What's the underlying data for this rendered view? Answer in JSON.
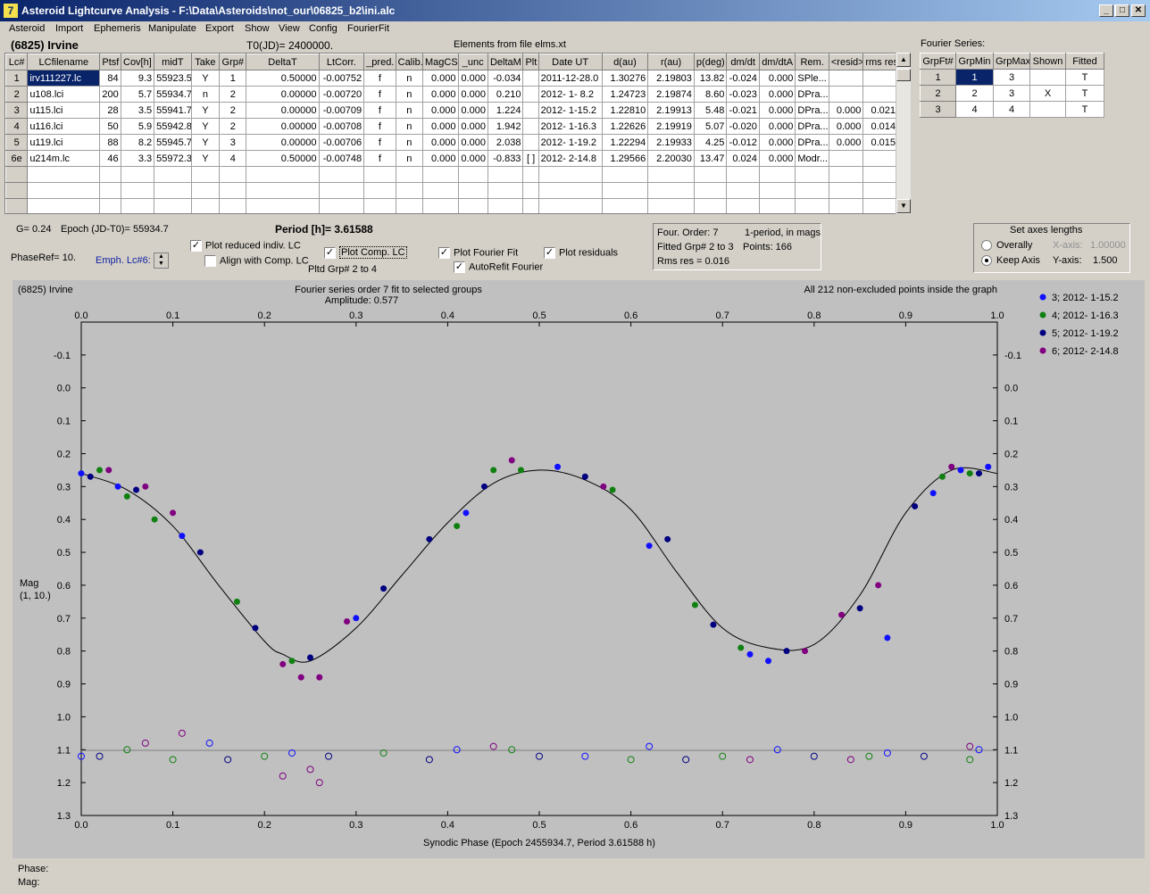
{
  "window": {
    "title": "Asteroid Lightcurve Analysis - F:\\Data\\Asteroids\\not_our\\06825_b2\\ini.alc"
  },
  "menu": [
    "Asteroid",
    "Import",
    "Ephemeris",
    "Manipulate",
    "Export",
    "Show",
    "View",
    "Config",
    "FourierFit"
  ],
  "header": {
    "asteroid_name": "(6825) Irvine",
    "t0": "T0(JD)= 2400000.",
    "elements": "Elements from file elms.xt"
  },
  "lc_table": {
    "columns": [
      "Lc#",
      "LCfilename",
      "Ptsf",
      "Cov[h]",
      "midT",
      "Take",
      "Grp#",
      "DeltaT",
      "LtCorr.",
      "_pred.",
      "Calib.",
      "MagCS",
      "_unc",
      "DeltaM",
      "Plt",
      "Date UT",
      "d(au)",
      "r(au)",
      "p(deg)",
      "dm/dt",
      "dm/dtA",
      "Rem.",
      "<resid>",
      "rms res"
    ],
    "rows": [
      [
        "1",
        "irv111227.lc",
        "84",
        "9.3",
        "55923.5",
        "Y",
        "1",
        "0.50000",
        "-0.00752",
        "f",
        "n",
        "0.000",
        "0.000",
        "-0.034",
        "",
        "2011-12-28.0",
        "1.30276",
        "2.19803",
        "13.82",
        "-0.024",
        "0.000",
        "SPle...",
        "",
        ""
      ],
      [
        "2",
        "u108.lci",
        "200",
        "5.7",
        "55934.7",
        "n",
        "2",
        "0.00000",
        "-0.00720",
        "f",
        "n",
        "0.000",
        "0.000",
        "0.210",
        "",
        "2012- 1- 8.2",
        "1.24723",
        "2.19874",
        "8.60",
        "-0.023",
        "0.000",
        "DPra...",
        "",
        ""
      ],
      [
        "3",
        "u115.lci",
        "28",
        "3.5",
        "55941.7",
        "Y",
        "2",
        "0.00000",
        "-0.00709",
        "f",
        "n",
        "0.000",
        "0.000",
        "1.224",
        "",
        "2012- 1-15.2",
        "1.22810",
        "2.19913",
        "5.48",
        "-0.021",
        "0.000",
        "DPra...",
        "0.000",
        "0.021"
      ],
      [
        "4",
        "u116.lci",
        "50",
        "5.9",
        "55942.8",
        "Y",
        "2",
        "0.00000",
        "-0.00708",
        "f",
        "n",
        "0.000",
        "0.000",
        "1.942",
        "",
        "2012- 1-16.3",
        "1.22626",
        "2.19919",
        "5.07",
        "-0.020",
        "0.000",
        "DPra...",
        "0.000",
        "0.014"
      ],
      [
        "5",
        "u119.lci",
        "88",
        "8.2",
        "55945.7",
        "Y",
        "3",
        "0.00000",
        "-0.00706",
        "f",
        "n",
        "0.000",
        "0.000",
        "2.038",
        "",
        "2012- 1-19.2",
        "1.22294",
        "2.19933",
        "4.25",
        "-0.012",
        "0.000",
        "DPra...",
        "0.000",
        "0.015"
      ],
      [
        "6e",
        "u214m.lc",
        "46",
        "3.3",
        "55972.3",
        "Y",
        "4",
        "0.50000",
        "-0.00748",
        "f",
        "n",
        "0.000",
        "0.000",
        "-0.833",
        "[ ]",
        "2012- 2-14.8",
        "1.29566",
        "2.20030",
        "13.47",
        "0.024",
        "0.000",
        "Modr...",
        "",
        ""
      ]
    ]
  },
  "fourier_series": {
    "title": "Fourier Series:",
    "columns": [
      "GrpFt#",
      "GrpMin",
      "GrpMax",
      "Shown",
      "Fitted"
    ],
    "rows": [
      [
        "1",
        "1",
        "3",
        "",
        "T"
      ],
      [
        "2",
        "2",
        "3",
        "X",
        "T"
      ],
      [
        "3",
        "4",
        "4",
        "",
        "T"
      ]
    ]
  },
  "controls": {
    "g": "G= 0.24",
    "epoch": "Epoch (JD-T0)= 55934.7",
    "period": "Period [h]= 3.61588",
    "phase_ref": "PhaseRef= 10.",
    "emph": "Emph. Lc#6:",
    "plot_reduced": "Plot reduced indiv. LC",
    "align": "Align with Comp. LC",
    "plot_comp": "Plot Comp. LC",
    "plotted_grp": "Pltd Grp#  2   to    4",
    "plot_fourier": "Plot Fourier Fit",
    "autorefit": "AutoRefit Fourier",
    "plot_residuals": "Plot residuals",
    "four_order": "Four. Order:  7",
    "one_period": "1-period, in mags",
    "fitted_grp": "Fitted Grp# 2 to 3",
    "points": "Points: 166",
    "rms": "Rms res      = 0.016",
    "axes_title": "Set axes lengths",
    "overall": "Overally",
    "keep_axis": "Keep Axis",
    "x_axis": "X-axis:",
    "x_axis_val": "1.00000",
    "y_axis": "Y-axis:",
    "y_axis_val": "1.500",
    "phase_label": "Phase:",
    "mag_label": "Mag:"
  },
  "plot": {
    "corner": "(6825) Irvine",
    "title": "Fourier series order 7 fit to selected groups",
    "amplitude": "Amplitude: 0.577",
    "note": "All 212 non-excluded points inside the graph",
    "xlabel": "Synodic Phase (Epoch 2455934.7, Period 3.61588 h)",
    "ylabel": "Mag",
    "ylabel2": "(1, 10.)",
    "xticks": [
      "0.0",
      "0.1",
      "0.2",
      "0.3",
      "0.4",
      "0.5",
      "0.6",
      "0.7",
      "0.8",
      "0.9",
      "1.0"
    ],
    "yticks": [
      "-0.1",
      "0.0",
      "0.1",
      "0.2",
      "0.3",
      "0.4",
      "0.5",
      "0.6",
      "0.7",
      "0.8",
      "0.9",
      "1.0",
      "1.1",
      "1.2",
      "1.3"
    ],
    "legend": [
      {
        "label": "3; 2012- 1-15.2",
        "color": "#1010ff"
      },
      {
        "label": "4; 2012- 1-16.3",
        "color": "#108010"
      },
      {
        "label": "5; 2012- 1-19.2",
        "color": "#000080"
      },
      {
        "label": "6; 2012- 2-14.8",
        "color": "#800080"
      }
    ]
  },
  "chart_data": {
    "type": "scatter",
    "title": "Fourier series order 7 fit to selected groups",
    "xlabel": "Synodic Phase (Epoch 2455934.7, Period 3.61588 h)",
    "ylabel": "Mag",
    "xlim": [
      0.0,
      1.0
    ],
    "ylim": [
      -0.2,
      1.3
    ],
    "y_inverted": true,
    "grid": false,
    "legend_position": "right",
    "fit_curve": {
      "x": [
        0.0,
        0.05,
        0.1,
        0.15,
        0.2,
        0.22,
        0.25,
        0.3,
        0.35,
        0.4,
        0.45,
        0.5,
        0.55,
        0.6,
        0.65,
        0.7,
        0.75,
        0.8,
        0.85,
        0.9,
        0.95,
        1.0
      ],
      "y": [
        0.26,
        0.31,
        0.42,
        0.6,
        0.77,
        0.81,
        0.83,
        0.73,
        0.57,
        0.41,
        0.29,
        0.25,
        0.28,
        0.37,
        0.56,
        0.73,
        0.79,
        0.78,
        0.63,
        0.38,
        0.25,
        0.26
      ]
    },
    "series": [
      {
        "name": "3; 2012- 1-15.2",
        "values": [
          [
            0.0,
            0.26
          ],
          [
            0.04,
            0.3
          ],
          [
            0.11,
            0.45
          ],
          [
            0.3,
            0.7
          ],
          [
            0.42,
            0.38
          ],
          [
            0.52,
            0.24
          ],
          [
            0.62,
            0.48
          ],
          [
            0.73,
            0.81
          ],
          [
            0.75,
            0.83
          ],
          [
            0.88,
            0.76
          ],
          [
            0.93,
            0.32
          ],
          [
            0.96,
            0.25
          ],
          [
            0.99,
            0.24
          ]
        ]
      },
      {
        "name": "4; 2012- 1-16.3",
        "values": [
          [
            0.02,
            0.25
          ],
          [
            0.05,
            0.33
          ],
          [
            0.08,
            0.4
          ],
          [
            0.17,
            0.65
          ],
          [
            0.23,
            0.83
          ],
          [
            0.41,
            0.42
          ],
          [
            0.45,
            0.25
          ],
          [
            0.48,
            0.25
          ],
          [
            0.58,
            0.31
          ],
          [
            0.67,
            0.66
          ],
          [
            0.72,
            0.79
          ],
          [
            0.94,
            0.27
          ],
          [
            0.97,
            0.26
          ]
        ]
      },
      {
        "name": "5; 2012- 1-19.2",
        "values": [
          [
            0.01,
            0.27
          ],
          [
            0.06,
            0.31
          ],
          [
            0.13,
            0.5
          ],
          [
            0.19,
            0.73
          ],
          [
            0.25,
            0.82
          ],
          [
            0.33,
            0.61
          ],
          [
            0.38,
            0.46
          ],
          [
            0.44,
            0.3
          ],
          [
            0.55,
            0.27
          ],
          [
            0.64,
            0.46
          ],
          [
            0.69,
            0.72
          ],
          [
            0.77,
            0.8
          ],
          [
            0.85,
            0.67
          ],
          [
            0.91,
            0.36
          ],
          [
            0.98,
            0.26
          ]
        ]
      },
      {
        "name": "6; 2012- 2-14.8",
        "values": [
          [
            0.03,
            0.25
          ],
          [
            0.07,
            0.3
          ],
          [
            0.1,
            0.38
          ],
          [
            0.22,
            0.84
          ],
          [
            0.24,
            0.88
          ],
          [
            0.26,
            0.88
          ],
          [
            0.29,
            0.71
          ],
          [
            0.47,
            0.22
          ],
          [
            0.57,
            0.3
          ],
          [
            0.79,
            0.8
          ],
          [
            0.83,
            0.69
          ],
          [
            0.87,
            0.6
          ],
          [
            0.95,
            0.24
          ]
        ]
      }
    ],
    "residual_series": [
      {
        "name": "3; 2012- 1-15.2",
        "values": [
          [
            0.0,
            1.12
          ],
          [
            0.14,
            1.08
          ],
          [
            0.23,
            1.11
          ],
          [
            0.41,
            1.1
          ],
          [
            0.55,
            1.12
          ],
          [
            0.62,
            1.09
          ],
          [
            0.76,
            1.1
          ],
          [
            0.88,
            1.11
          ],
          [
            0.98,
            1.1
          ]
        ]
      },
      {
        "name": "4; 2012- 1-16.3",
        "values": [
          [
            0.05,
            1.1
          ],
          [
            0.1,
            1.13
          ],
          [
            0.2,
            1.12
          ],
          [
            0.33,
            1.11
          ],
          [
            0.47,
            1.1
          ],
          [
            0.6,
            1.13
          ],
          [
            0.7,
            1.12
          ],
          [
            0.86,
            1.12
          ],
          [
            0.97,
            1.13
          ]
        ]
      },
      {
        "name": "5; 2012- 1-19.2",
        "values": [
          [
            0.02,
            1.12
          ],
          [
            0.16,
            1.13
          ],
          [
            0.27,
            1.12
          ],
          [
            0.38,
            1.13
          ],
          [
            0.5,
            1.12
          ],
          [
            0.66,
            1.13
          ],
          [
            0.8,
            1.12
          ],
          [
            0.92,
            1.12
          ]
        ]
      },
      {
        "name": "6; 2012- 2-14.8",
        "values": [
          [
            0.07,
            1.08
          ],
          [
            0.11,
            1.05
          ],
          [
            0.22,
            1.18
          ],
          [
            0.25,
            1.16
          ],
          [
            0.26,
            1.2
          ],
          [
            0.45,
            1.09
          ],
          [
            0.73,
            1.13
          ],
          [
            0.84,
            1.13
          ],
          [
            0.97,
            1.09
          ]
        ]
      }
    ]
  }
}
